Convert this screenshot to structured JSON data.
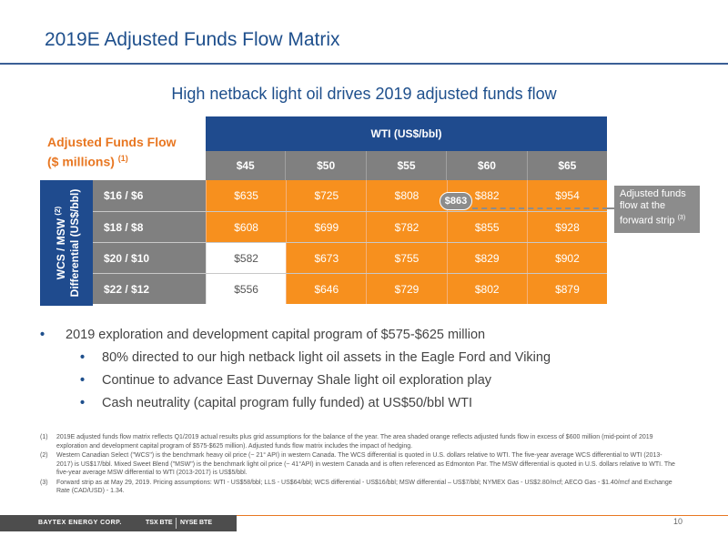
{
  "title": "2019E Adjusted Funds Flow Matrix",
  "subtitle": "High netback light oil drives 2019 adjusted funds flow",
  "matrix_title": {
    "line1": "Adjusted Funds Flow",
    "line2": "($ millions)",
    "note": "(1)"
  },
  "wti_header": "WTI (US$/bbl)",
  "price_columns": [
    "$45",
    "$50",
    "$55",
    "$60",
    "$65"
  ],
  "side_label": {
    "line1": "WCS / MSW",
    "note": "(2)",
    "line2": "Differential (US$/bbl)"
  },
  "rows": [
    {
      "label": "$16 / $6",
      "values": [
        "$635",
        "$725",
        "$808",
        "$882",
        "$954"
      ]
    },
    {
      "label": "$18 / $8",
      "values": [
        "$608",
        "$699",
        "$782",
        "$855",
        "$928"
      ]
    },
    {
      "label": "$20 / $10",
      "values": [
        "$582",
        "$673",
        "$755",
        "$829",
        "$902"
      ]
    },
    {
      "label": "$22 / $12",
      "values": [
        "$556",
        "$646",
        "$729",
        "$802",
        "$879"
      ]
    }
  ],
  "highlight_threshold": 600,
  "forward_strip_value": "$863",
  "annotation": {
    "text": "Adjusted funds flow at the forward strip",
    "note": "(3)"
  },
  "bullets": [
    {
      "level": 1,
      "text": "2019 exploration and development capital program of $575-$625 million"
    },
    {
      "level": 2,
      "text": "80% directed to our high netback light oil assets in the Eagle Ford and Viking"
    },
    {
      "level": 2,
      "text": "Continue to advance East Duvernay Shale light oil exploration play"
    },
    {
      "level": 2,
      "text": "Cash neutrality (capital program fully funded) at US$50/bbl WTI"
    }
  ],
  "footnotes": [
    {
      "num": "(1)",
      "text": "2019E adjusted funds flow matrix reflects Q1/2019 actual results plus grid assumptions for the balance of the year. The area shaded orange reflects adjusted funds flow in excess of $600 million (mid-point of 2019 exploration and development capital program of $575-$625 million). Adjusted funds flow matrix includes the impact of hedging."
    },
    {
      "num": "(2)",
      "text": "Western Canadian Select (\"WCS\") is the benchmark heavy oil price (~ 21° API) in western Canada. The WCS differential is quoted in U.S. dollars relative to WTI. The five-year average WCS differential to WTI (2013-2017) is US$17/bbl. Mixed Sweet Blend (\"MSW\") is the benchmark light oil price (~ 41°API) in western Canada and is often referenced as Edmonton Par. The MSW differential is quoted in U.S. dollars relative to WTI. The five-year average MSW differential to WTI (2013-2017) is US$5/bbl."
    },
    {
      "num": "(3)",
      "text": "Forward strip as at May 29, 2019. Pricing assumptions: WTI - US$58/bbl; LLS - US$64/bbl; WCS differential - US$16/bbl; MSW differential – US$7/bbl; NYMEX Gas - US$2.80/mcf; AECO Gas - $1.40/mcf and Exchange Rate (CAD/USD) - 1.34."
    }
  ],
  "footer": {
    "brand": "BAYTEX ENERGY CORP.",
    "tsx": "TSX BTE",
    "nyse": "NYSE BTE",
    "page": "10"
  },
  "colors": {
    "orange": "#f7901e",
    "navy": "#1f4b8e",
    "gray": "#808080"
  }
}
